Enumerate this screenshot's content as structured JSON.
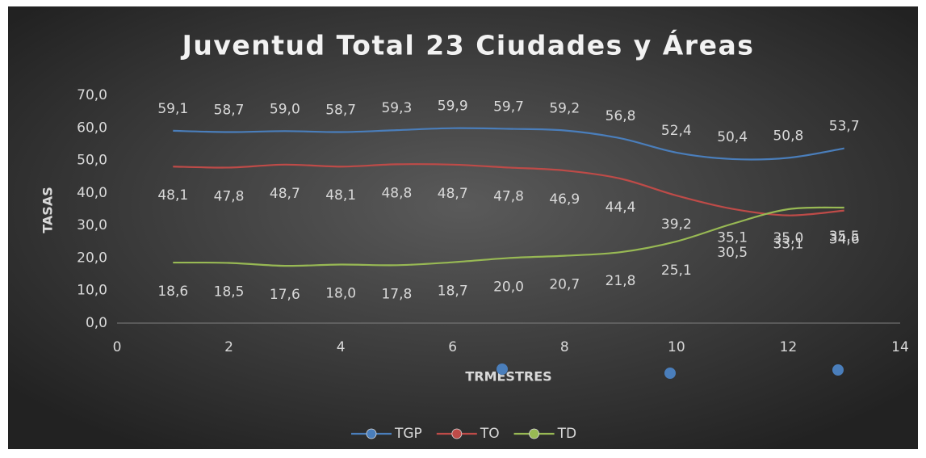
{
  "chart_data": {
    "type": "line",
    "title": "Juventud Total 23 Ciudades y Áreas",
    "xlabel": "TRMESTRES",
    "ylabel": "TASAS",
    "x": [
      1,
      2,
      3,
      4,
      5,
      6,
      7,
      8,
      9,
      10,
      11,
      12,
      13
    ],
    "xlim": [
      0,
      14
    ],
    "xticks": [
      0,
      2,
      4,
      6,
      8,
      10,
      12,
      14
    ],
    "ylim": [
      0,
      70
    ],
    "yticks": [
      {
        "value": 0,
        "label": "0,0"
      },
      {
        "value": 10,
        "label": "10,0"
      },
      {
        "value": 20,
        "label": "20,0"
      },
      {
        "value": 30,
        "label": "30,0"
      },
      {
        "value": 40,
        "label": "40,0"
      },
      {
        "value": 50,
        "label": "50,0"
      },
      {
        "value": 60,
        "label": "60,0"
      },
      {
        "value": 70,
        "label": "70,0"
      }
    ],
    "grid": false,
    "legend": "bottom",
    "series": [
      {
        "name": "TGP",
        "color": "#4a7ebb",
        "values": [
          59.1,
          58.7,
          59.0,
          58.7,
          59.3,
          59.9,
          59.7,
          59.2,
          56.8,
          52.4,
          50.4,
          50.8,
          53.7
        ],
        "value_labels": [
          "59,1",
          "58,7",
          "59,0",
          "58,7",
          "59,3",
          "59,9",
          "59,7",
          "59,2",
          "56,8",
          "52,4",
          "50,4",
          "50,8",
          "53,7"
        ]
      },
      {
        "name": "TO",
        "color": "#be4b48",
        "values": [
          48.1,
          47.8,
          48.7,
          48.1,
          48.8,
          48.7,
          47.8,
          46.9,
          44.4,
          39.2,
          35.1,
          33.1,
          34.6
        ],
        "value_labels": [
          "48,1",
          "47,8",
          "48,7",
          "48,1",
          "48,8",
          "48,7",
          "47,8",
          "46,9",
          "44,4",
          "39,2",
          "35,1",
          "33,1",
          "34,6"
        ]
      },
      {
        "name": "TD",
        "color": "#98b954",
        "values": [
          18.6,
          18.5,
          17.6,
          18.0,
          17.8,
          18.7,
          20.0,
          20.7,
          21.8,
          25.1,
          30.5,
          35.0,
          35.5
        ],
        "value_labels": [
          "18,6",
          "18,5",
          "17,6",
          "18,0",
          "17,8",
          "18,7",
          "20,0",
          "20,7",
          "21,8",
          "25,1",
          "30,5",
          "35,0",
          "35,5"
        ]
      }
    ]
  }
}
